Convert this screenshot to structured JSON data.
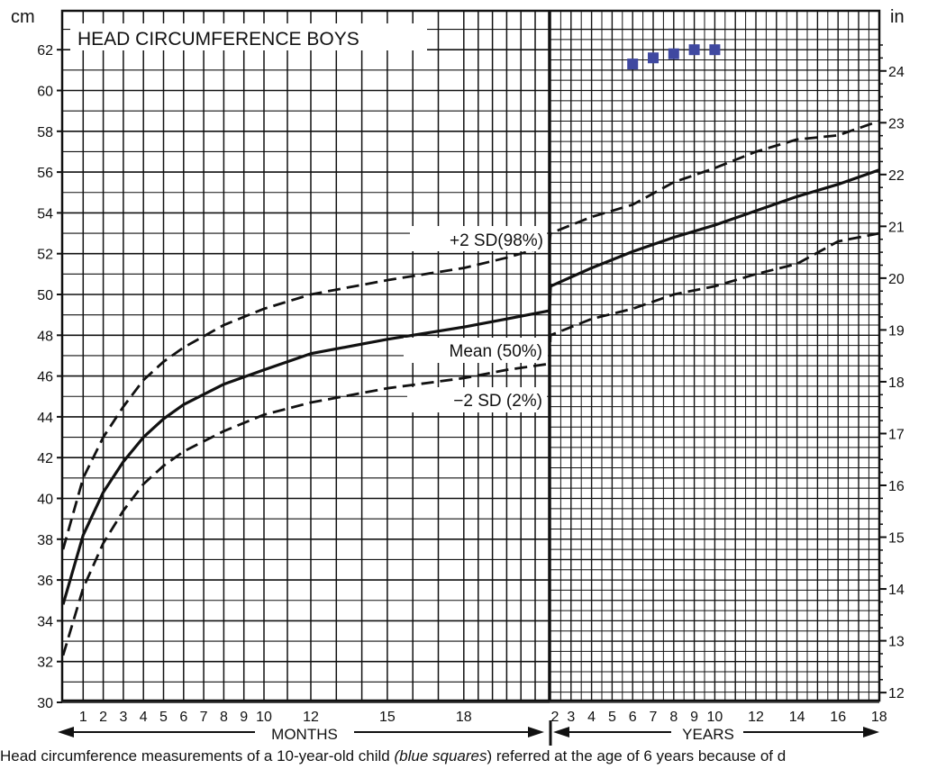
{
  "chart_data": {
    "type": "line",
    "title": "HEAD CIRCUMFERENCE BOYS",
    "left_unit": "cm",
    "right_unit": "in",
    "y_ticks_cm": [
      "30",
      "32",
      "34",
      "36",
      "38",
      "40",
      "42",
      "44",
      "46",
      "48",
      "50",
      "52",
      "54",
      "56",
      "58",
      "60",
      "62"
    ],
    "y_ticks_in": [
      "12",
      "13",
      "14",
      "15",
      "16",
      "17",
      "18",
      "19",
      "20",
      "21",
      "22",
      "23",
      "24"
    ],
    "x_month_ticks": [
      "1",
      "2",
      "3",
      "4",
      "5",
      "6",
      "7",
      "8",
      "9",
      "10",
      "12",
      "15",
      "18"
    ],
    "x_year_ticks": [
      "2",
      "3",
      "4",
      "5",
      "6",
      "7",
      "8",
      "9",
      "10",
      "12",
      "14",
      "16",
      "18"
    ],
    "xlabel_months": "MONTHS",
    "xlabel_years": "YEARS",
    "ylim_cm": [
      30,
      63
    ],
    "series": [
      {
        "name": "+2 SD(98%)",
        "dashed": true,
        "x_months": [
          0,
          1,
          2,
          3,
          4,
          5,
          6,
          8,
          10,
          12,
          15,
          18,
          21,
          24
        ],
        "y_cm": [
          37.5,
          41.0,
          43.0,
          44.5,
          45.8,
          46.7,
          47.4,
          48.5,
          49.3,
          50.0,
          50.7,
          51.3,
          51.8,
          52.4
        ],
        "x_years": [
          2,
          4,
          6,
          8,
          10,
          12,
          14,
          16,
          18
        ],
        "y_cm_years": [
          53.0,
          53.8,
          54.4,
          55.5,
          56.2,
          57.0,
          57.6,
          57.8,
          58.5
        ]
      },
      {
        "name": "Mean (50%)",
        "dashed": false,
        "x_months": [
          0,
          1,
          2,
          3,
          4,
          5,
          6,
          8,
          10,
          12,
          15,
          18,
          21,
          24
        ],
        "y_cm": [
          34.8,
          38.2,
          40.3,
          41.8,
          43.0,
          43.9,
          44.6,
          45.6,
          46.3,
          47.1,
          47.8,
          48.4,
          48.8,
          49.2
        ],
        "x_years": [
          2,
          4,
          6,
          8,
          10,
          12,
          14,
          16,
          18
        ],
        "y_cm_years": [
          50.4,
          51.3,
          52.1,
          52.8,
          53.4,
          54.1,
          54.8,
          55.4,
          56.1
        ]
      },
      {
        "name": "−2 SD (2%)",
        "dashed": true,
        "x_months": [
          0,
          1,
          2,
          3,
          4,
          5,
          6,
          8,
          10,
          12,
          15,
          18,
          21,
          24
        ],
        "y_cm": [
          32.3,
          35.6,
          37.8,
          39.4,
          40.7,
          41.6,
          42.3,
          43.3,
          44.1,
          44.7,
          45.4,
          45.9,
          46.3,
          46.6
        ],
        "x_years": [
          2,
          4,
          6,
          8,
          10,
          12,
          14,
          16,
          18
        ],
        "y_cm_years": [
          48.0,
          48.8,
          49.3,
          50.0,
          50.4,
          51.0,
          51.5,
          52.6,
          53.0
        ]
      }
    ],
    "measurements": {
      "name": "blue squares",
      "x_years": [
        6,
        7,
        8,
        9,
        10
      ],
      "y_cm": [
        61.3,
        61.6,
        61.8,
        62.0,
        62.0
      ],
      "color": "#3f48a0"
    },
    "grid": true,
    "grid_color": "#111111"
  },
  "caption": {
    "lead": "Head circumference measurements of a 10-year-old child ",
    "emph": "(blue squares",
    "tail": ") referred at the age of 6 years because of d"
  }
}
